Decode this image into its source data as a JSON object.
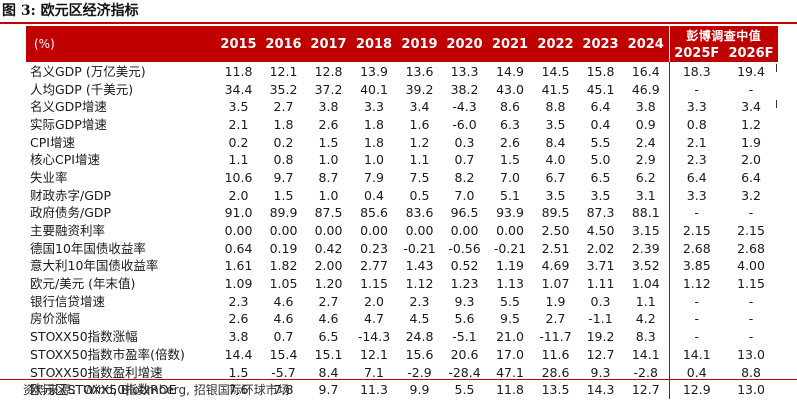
{
  "title": "图 3: 欧元区经济指标",
  "header": {
    "unit_label": "(%)",
    "years": [
      "2015",
      "2016",
      "2017",
      "2018",
      "2019",
      "2020",
      "2021",
      "2022",
      "2023",
      "2024"
    ],
    "forecast_group_title": "彭博调查中值",
    "forecast_years": [
      "2025F",
      "2026F"
    ]
  },
  "rows": [
    {
      "label": "名义GDP (万亿美元)",
      "values": [
        "11.8",
        "12.1",
        "12.8",
        "13.9",
        "13.6",
        "13.3",
        "14.9",
        "14.5",
        "15.8",
        "16.4"
      ],
      "forecast": [
        "18.3",
        "19.4"
      ]
    },
    {
      "label": "人均GDP (千美元)",
      "values": [
        "34.4",
        "35.2",
        "37.2",
        "40.1",
        "39.2",
        "38.2",
        "43.0",
        "41.5",
        "45.1",
        "46.9"
      ],
      "forecast": [
        "-",
        "-"
      ]
    },
    {
      "label": "名义GDP增速",
      "values": [
        "3.5",
        "2.7",
        "3.8",
        "3.3",
        "3.4",
        "-4.3",
        "8.6",
        "8.8",
        "6.4",
        "3.8"
      ],
      "forecast": [
        "3.3",
        "3.4"
      ]
    },
    {
      "label": "实际GDP增速",
      "values": [
        "2.1",
        "1.8",
        "2.6",
        "1.8",
        "1.6",
        "-6.0",
        "6.3",
        "3.5",
        "0.4",
        "0.9"
      ],
      "forecast": [
        "0.8",
        "1.2"
      ]
    },
    {
      "label": "CPI增速",
      "values": [
        "0.2",
        "0.2",
        "1.5",
        "1.8",
        "1.2",
        "0.3",
        "2.6",
        "8.4",
        "5.5",
        "2.4"
      ],
      "forecast": [
        "2.1",
        "1.9"
      ]
    },
    {
      "label": "核心CPI增速",
      "values": [
        "1.1",
        "0.8",
        "1.0",
        "1.0",
        "1.1",
        "0.7",
        "1.5",
        "4.0",
        "5.0",
        "2.9"
      ],
      "forecast": [
        "2.3",
        "2.0"
      ]
    },
    {
      "label": "失业率",
      "values": [
        "10.6",
        "9.7",
        "8.7",
        "7.9",
        "7.5",
        "8.2",
        "7.0",
        "6.7",
        "6.5",
        "6.2"
      ],
      "forecast": [
        "6.4",
        "6.4"
      ]
    },
    {
      "label": "财政赤字/GDP",
      "values": [
        "2.0",
        "1.5",
        "1.0",
        "0.4",
        "0.5",
        "7.0",
        "5.1",
        "3.5",
        "3.5",
        "3.1"
      ],
      "forecast": [
        "3.3",
        "3.2"
      ]
    },
    {
      "label": "政府债务/GDP",
      "values": [
        "91.0",
        "89.9",
        "87.5",
        "85.6",
        "83.6",
        "96.5",
        "93.9",
        "89.5",
        "87.3",
        "88.1"
      ],
      "forecast": [
        "-",
        "-"
      ]
    },
    {
      "label": "主要融资利率",
      "values": [
        "0.00",
        "0.00",
        "0.00",
        "0.00",
        "0.00",
        "0.00",
        "0.00",
        "2.50",
        "4.50",
        "3.15"
      ],
      "forecast": [
        "2.15",
        "2.15"
      ]
    },
    {
      "label": "德国10年国债收益率",
      "values": [
        "0.64",
        "0.19",
        "0.42",
        "0.23",
        "-0.21",
        "-0.56",
        "-0.21",
        "2.51",
        "2.02",
        "2.39"
      ],
      "forecast": [
        "2.68",
        "2.68"
      ]
    },
    {
      "label": "意大利10年国债收益率",
      "values": [
        "1.61",
        "1.82",
        "2.00",
        "2.77",
        "1.43",
        "0.52",
        "1.19",
        "4.69",
        "3.71",
        "3.52"
      ],
      "forecast": [
        "3.85",
        "4.00"
      ]
    },
    {
      "label": "欧元/美元 (年末值)",
      "values": [
        "1.09",
        "1.05",
        "1.20",
        "1.15",
        "1.12",
        "1.23",
        "1.13",
        "1.07",
        "1.11",
        "1.04"
      ],
      "forecast": [
        "1.12",
        "1.15"
      ]
    },
    {
      "label": "银行信贷增速",
      "values": [
        "2.3",
        "4.6",
        "2.7",
        "2.0",
        "2.3",
        "9.3",
        "5.5",
        "1.9",
        "0.3",
        "1.1"
      ],
      "forecast": [
        "-",
        "-"
      ]
    },
    {
      "label": "房价涨幅",
      "values": [
        "2.6",
        "4.6",
        "4.6",
        "4.7",
        "4.5",
        "5.6",
        "9.5",
        "2.7",
        "-1.1",
        "4.2"
      ],
      "forecast": [
        "-",
        "-"
      ]
    },
    {
      "label": "STOXX50指数涨幅",
      "values": [
        "3.8",
        "0.7",
        "6.5",
        "-14.3",
        "24.8",
        "-5.1",
        "21.0",
        "-11.7",
        "19.2",
        "8.3"
      ],
      "forecast": [
        "-",
        "-"
      ]
    },
    {
      "label": "STOXX50指数市盈率(倍数)",
      "values": [
        "14.4",
        "15.4",
        "15.1",
        "12.1",
        "15.6",
        "20.6",
        "17.0",
        "11.6",
        "12.7",
        "14.1"
      ],
      "forecast": [
        "14.1",
        "13.0"
      ]
    },
    {
      "label": "STOXX50指数盈利增速",
      "values": [
        "1.5",
        "-5.7",
        "8.4",
        "7.1",
        "-2.9",
        "-28.4",
        "47.1",
        "28.6",
        "9.3",
        "-2.8"
      ],
      "forecast": [
        "0.4",
        "8.8"
      ]
    },
    {
      "label": "欧元区STOXX50指数ROE",
      "values": [
        "7.6",
        "7.8",
        "9.7",
        "11.3",
        "9.9",
        "5.5",
        "11.8",
        "13.5",
        "14.3",
        "12.7"
      ],
      "forecast": [
        "12.9",
        "13.0"
      ]
    }
  ],
  "source": "资料来源：Wind, Bloomberg, 招银国际环球市场"
}
